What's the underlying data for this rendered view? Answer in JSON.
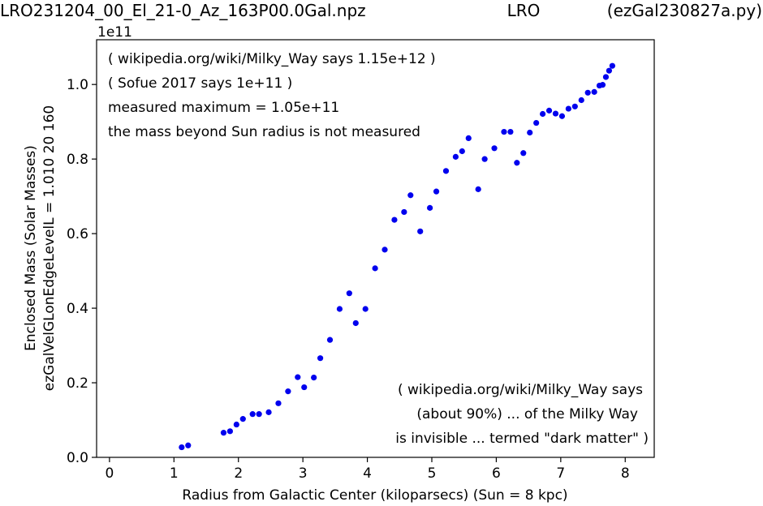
{
  "header": {
    "left": "LRO231204_00_El_21-0_Az_163P00.0Gal.npz",
    "center": "LRO",
    "right": "(ezGal230827a.py)"
  },
  "chart_data": {
    "type": "scatter",
    "xlabel": "Radius from Galactic Center (kiloparsecs)  (Sun = 8 kpc)",
    "ylabel_line1": "Enclosed Mass (Solar Masses)",
    "ylabel_line2": "ezGalVelGLonEdgeLevelL = 1.010  20  160",
    "y_multiplier": "1e11",
    "xlim": [
      -0.2,
      8.45
    ],
    "ylim": [
      0.0,
      1.12
    ],
    "xticks": [
      0,
      1,
      2,
      3,
      4,
      5,
      6,
      7,
      8
    ],
    "xtick_labels": [
      "0",
      "1",
      "2",
      "3",
      "4",
      "5",
      "6",
      "7",
      "8"
    ],
    "yticks": [
      0.0,
      0.2,
      0.4,
      0.6,
      0.8,
      1.0
    ],
    "ytick_labels": [
      "0.0",
      "0.2",
      "0.4",
      "0.6",
      "0.8",
      "1.0"
    ],
    "grid": false,
    "point_color": "#0000ee",
    "annotations_top_left": [
      "( wikipedia.org/wiki/Milky_Way says 1.15e+12 )",
      "( Sofue 2017 says 1e+11 )",
      "measured maximum = 1.05e+11",
      "the mass beyond Sun radius is not measured"
    ],
    "annotations_bottom_right": [
      "( wikipedia.org/wiki/Milky_Way says",
      "(about 90%) ... of the Milky Way",
      "is invisible ... termed \"dark matter\" )"
    ],
    "x": [
      1.12,
      1.22,
      1.77,
      1.87,
      1.97,
      2.07,
      2.22,
      2.32,
      2.47,
      2.62,
      2.77,
      2.92,
      3.02,
      3.17,
      3.27,
      3.42,
      3.57,
      3.72,
      3.82,
      3.97,
      4.12,
      4.27,
      4.42,
      4.57,
      4.67,
      4.82,
      4.97,
      5.07,
      5.22,
      5.37,
      5.47,
      5.57,
      5.72,
      5.82,
      5.97,
      6.12,
      6.22,
      6.32,
      6.42,
      6.52,
      6.62,
      6.72,
      6.82,
      6.92,
      7.02,
      7.12,
      7.22,
      7.32,
      7.42,
      7.52,
      7.6,
      7.65,
      7.7,
      7.75,
      7.8
    ],
    "y": [
      0.027,
      0.032,
      0.066,
      0.07,
      0.088,
      0.103,
      0.116,
      0.116,
      0.121,
      0.145,
      0.177,
      0.215,
      0.188,
      0.214,
      0.266,
      0.315,
      0.398,
      0.44,
      0.36,
      0.398,
      0.507,
      0.557,
      0.637,
      0.658,
      0.703,
      0.606,
      0.669,
      0.713,
      0.768,
      0.806,
      0.821,
      0.856,
      0.719,
      0.8,
      0.829,
      0.873,
      0.873,
      0.79,
      0.816,
      0.871,
      0.897,
      0.921,
      0.93,
      0.922,
      0.915,
      0.935,
      0.941,
      0.958,
      0.978,
      0.98,
      0.997,
      0.999,
      1.02,
      1.037,
      1.05
    ]
  }
}
